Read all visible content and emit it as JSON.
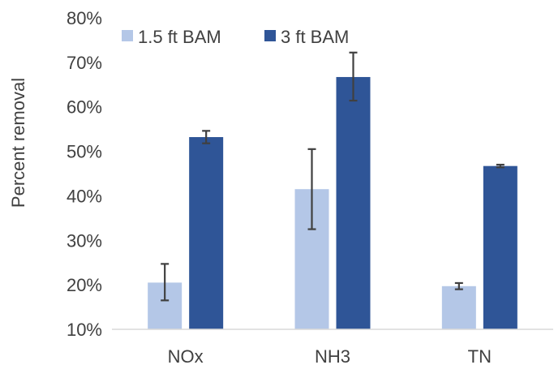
{
  "chart_data": {
    "type": "bar",
    "categories": [
      "NOx",
      "NH3",
      "TN"
    ],
    "series": [
      {
        "name": "1.5 ft BAM",
        "color": "#b4c7e7",
        "values": [
          20.5,
          41.5,
          19.7
        ],
        "error_low": [
          16.5,
          32.5,
          19.0
        ],
        "error_high": [
          24.7,
          50.5,
          20.4
        ]
      },
      {
        "name": "3 ft BAM",
        "color": "#2f5597",
        "values": [
          53.2,
          66.7,
          46.7
        ],
        "error_low": [
          51.8,
          61.4,
          46.4
        ],
        "error_high": [
          54.6,
          72.2,
          47.0
        ]
      }
    ],
    "ylabel": "Percent removal",
    "ylim": [
      10,
      80
    ],
    "yticks": [
      "10%",
      "20%",
      "30%",
      "40%",
      "50%",
      "60%",
      "70%",
      "80%"
    ],
    "ytick_values": [
      10,
      20,
      30,
      40,
      50,
      60,
      70,
      80
    ],
    "grid": false,
    "legend": "top-left",
    "error_bar_color": "#404040",
    "axis_color": "#d9d9d9"
  }
}
